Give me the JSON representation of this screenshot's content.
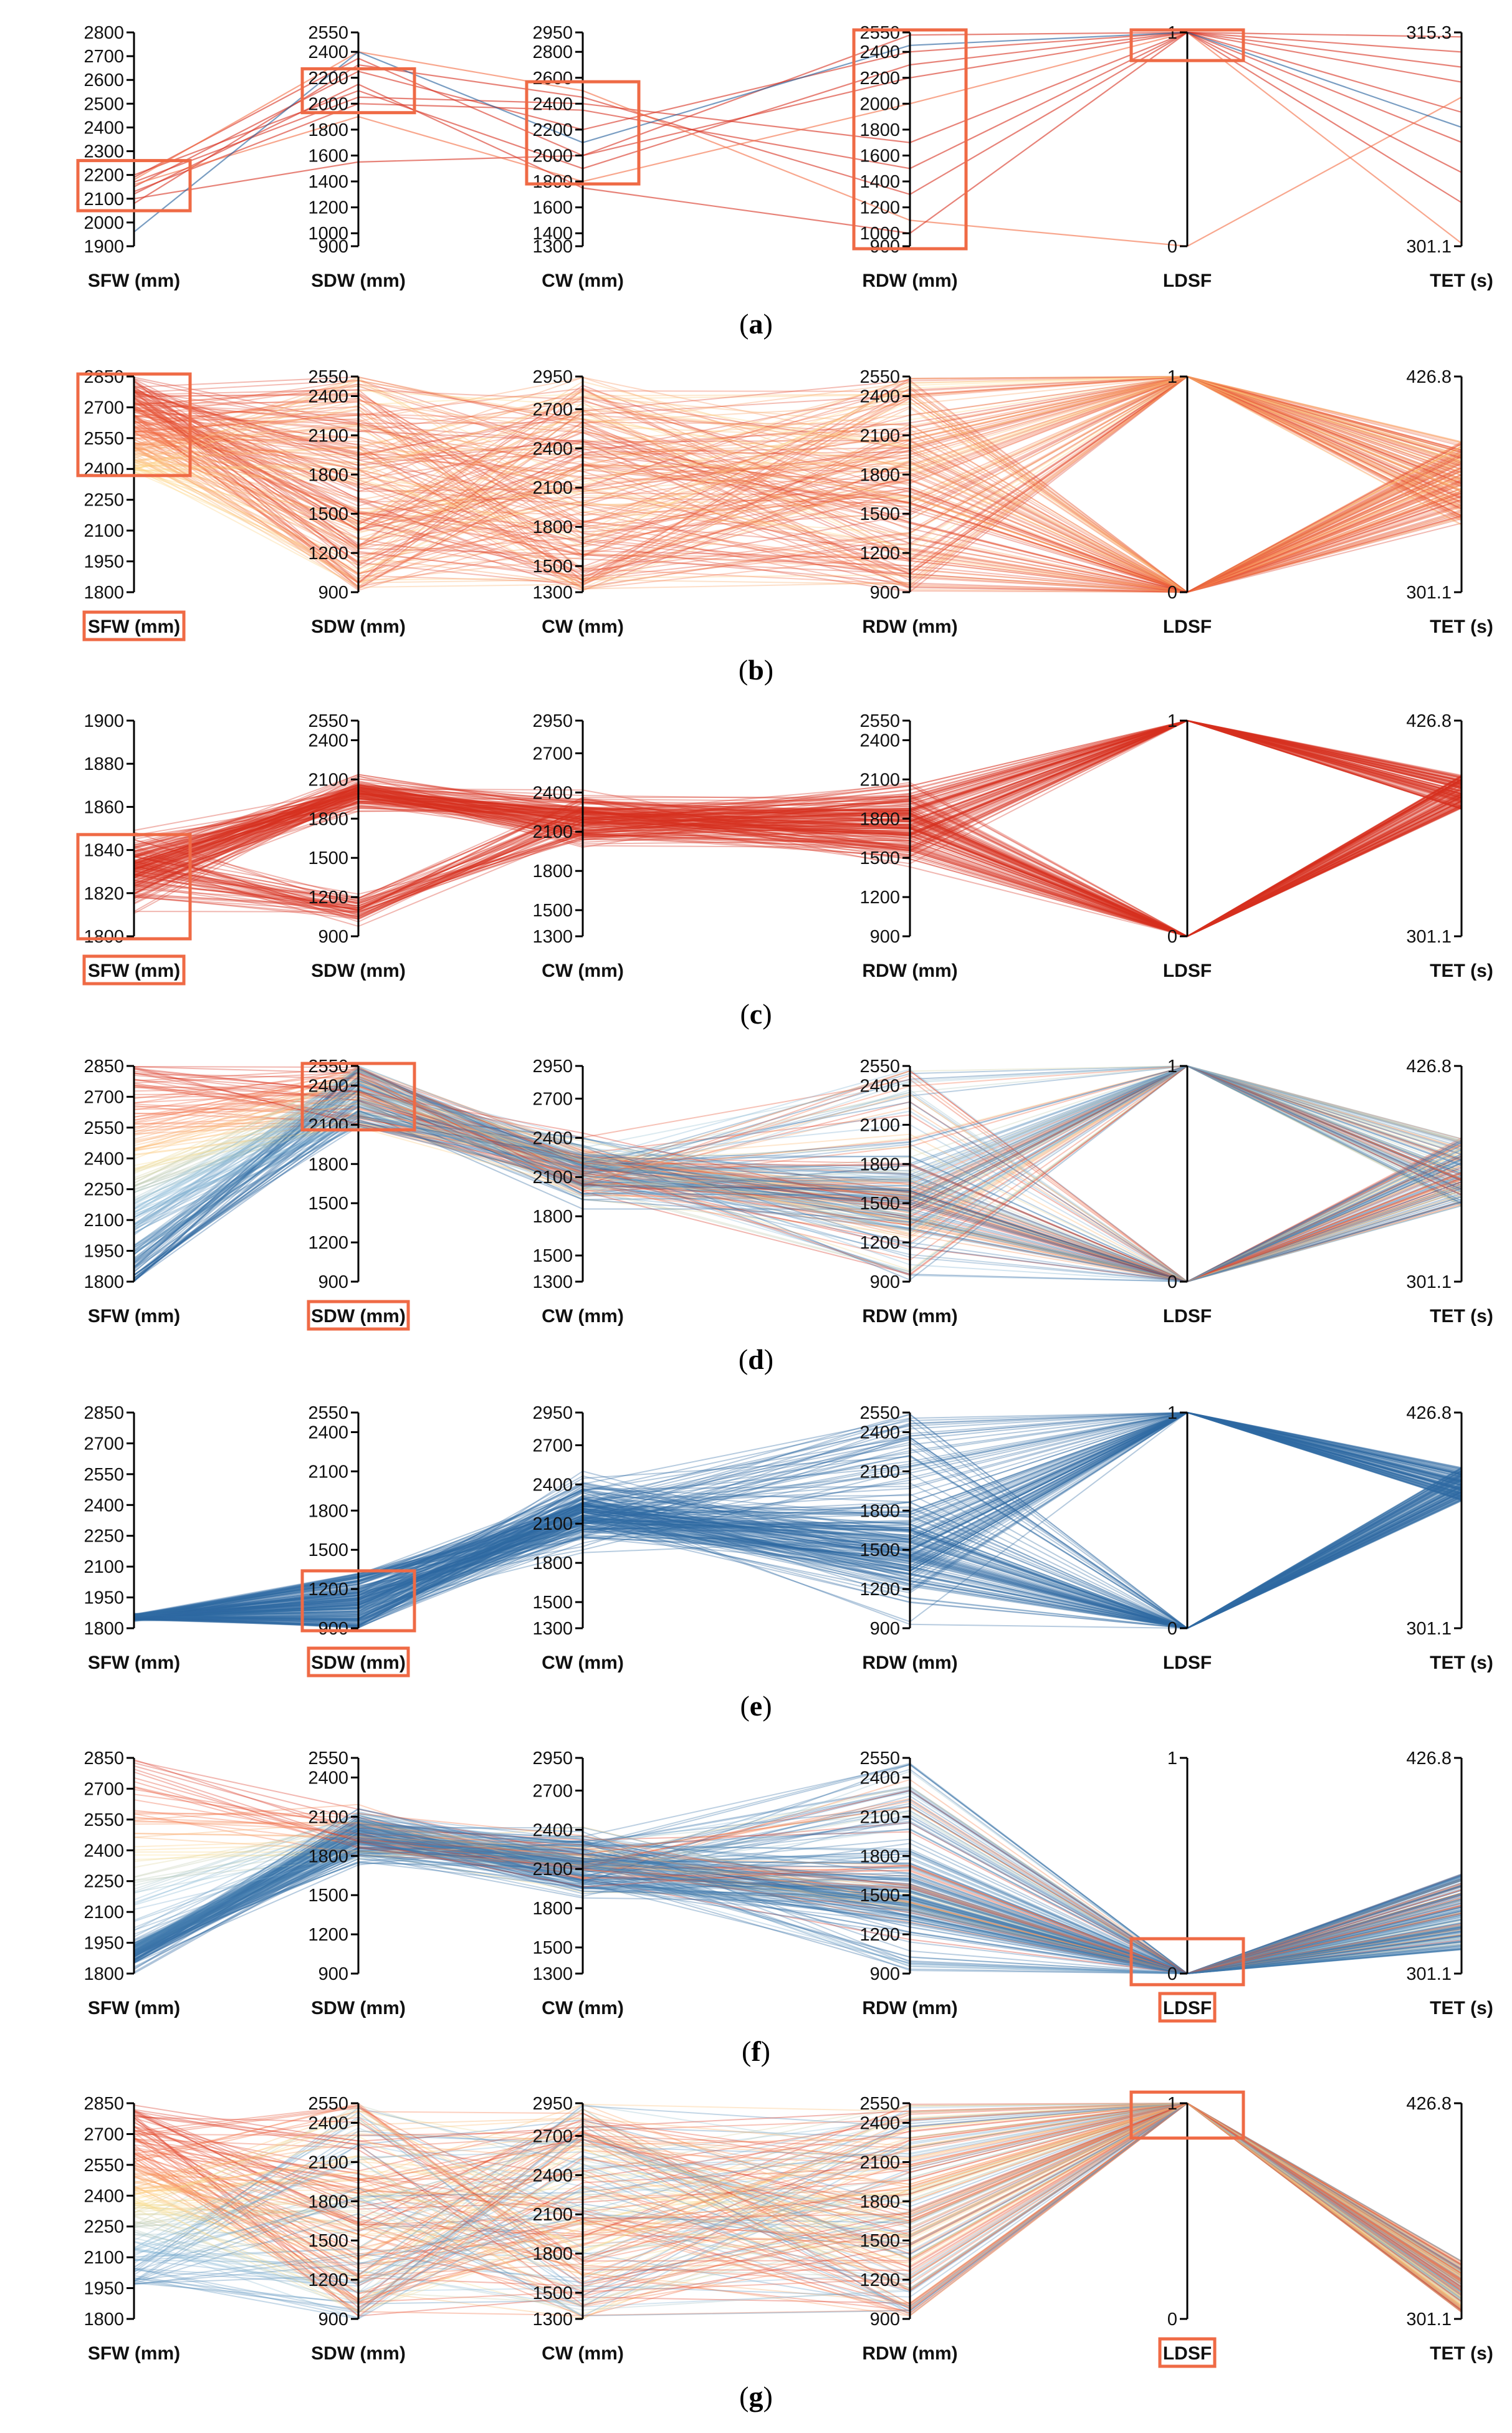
{
  "figure": {
    "colors": {
      "red": "#d7301f",
      "orange": "#f46d43",
      "yellow": "#fee08b",
      "lightblue": "#91bfdb",
      "blue": "#1f5c99",
      "highlight": "#ef6a45",
      "axis": "#000000"
    }
  },
  "chart_data": [
    {
      "type": "parallel_coordinates",
      "caption": "(a)",
      "axes": [
        {
          "name": "SFW (mm)",
          "ticks": [
            "2800",
            "2700",
            "2600",
            "2500",
            "2400",
            "2300",
            "2200",
            "2100",
            "2000",
            "1900"
          ],
          "range": [
            1900,
            2800
          ]
        },
        {
          "name": "SDW (mm)",
          "ticks": [
            "2550",
            "2400",
            "2200",
            "2000",
            "1800",
            "1600",
            "1400",
            "1200",
            "1000",
            "900"
          ],
          "range": [
            900,
            2550
          ]
        },
        {
          "name": "CW (mm)",
          "ticks": [
            "2950",
            "2800",
            "2600",
            "2400",
            "2200",
            "2000",
            "1800",
            "1600",
            "1400",
            "1300"
          ],
          "range": [
            1300,
            2950
          ]
        },
        {
          "name": "RDW (mm)",
          "ticks": [
            "2550",
            "2400",
            "2200",
            "2000",
            "1800",
            "1600",
            "1400",
            "1200",
            "1000",
            "900"
          ],
          "range": [
            900,
            2550
          ]
        },
        {
          "name": "LDSF",
          "ticks": [
            "1",
            "0"
          ],
          "range": [
            0,
            1
          ]
        },
        {
          "name": "TET (s)",
          "ticks": [
            "315.3",
            "301.1"
          ],
          "range": [
            301.1,
            315.3
          ]
        }
      ],
      "highlighted_axes": [],
      "selection_boxes": [
        {
          "axis": 0,
          "from": 2060,
          "to": 2250
        },
        {
          "axis": 1,
          "from": 1950,
          "to": 2250
        },
        {
          "axis": 2,
          "from": 1800,
          "to": 2550
        },
        {
          "axis": 3,
          "from": 900,
          "to": 2550
        },
        {
          "axis": 4,
          "from": 0.88,
          "to": 1
        }
      ],
      "lines": [
        {
          "values": [
            2190,
            2350,
            2000,
            2530,
            1,
            315
          ],
          "color": "red"
        },
        {
          "values": [
            2170,
            2050,
            2400,
            1700,
            1,
            312
          ],
          "color": "red"
        },
        {
          "values": [
            2150,
            2250,
            2200,
            2400,
            1,
            310
          ],
          "color": "red"
        },
        {
          "values": [
            2130,
            2000,
            2350,
            1500,
            1,
            308
          ],
          "color": "red"
        },
        {
          "values": [
            2200,
            2100,
            1900,
            2300,
            1,
            314
          ],
          "color": "red"
        },
        {
          "values": [
            2100,
            1550,
            2000,
            2200,
            1,
            313
          ],
          "color": "red"
        },
        {
          "values": [
            2080,
            2300,
            2450,
            1300,
            1,
            304
          ],
          "color": "red"
        },
        {
          "values": [
            2160,
            1900,
            1800,
            2000,
            1,
            301.3
          ],
          "color": "orange"
        },
        {
          "values": [
            2180,
            2400,
            2500,
            1100,
            0,
            311
          ],
          "color": "orange"
        },
        {
          "values": [
            2120,
            2150,
            1750,
            1000,
            1,
            306
          ],
          "color": "red"
        },
        {
          "values": [
            1960,
            2400,
            2100,
            2450,
            1,
            309
          ],
          "color": "blue"
        }
      ]
    },
    {
      "type": "parallel_coordinates",
      "caption": "(b)",
      "axes": [
        {
          "name": "SFW (mm)",
          "ticks": [
            "2850",
            "2700",
            "2550",
            "2400",
            "2250",
            "2100",
            "1950",
            "1800"
          ],
          "range": [
            1800,
            2850
          ]
        },
        {
          "name": "SDW (mm)",
          "ticks": [
            "2550",
            "2400",
            "2100",
            "1800",
            "1500",
            "1200",
            "900"
          ],
          "range": [
            900,
            2550
          ]
        },
        {
          "name": "CW (mm)",
          "ticks": [
            "2950",
            "2700",
            "2400",
            "2100",
            "1800",
            "1500",
            "1300"
          ],
          "range": [
            1300,
            2950
          ]
        },
        {
          "name": "RDW (mm)",
          "ticks": [
            "2550",
            "2400",
            "2100",
            "1800",
            "1500",
            "1200",
            "900"
          ],
          "range": [
            900,
            2550
          ]
        },
        {
          "name": "LDSF",
          "ticks": [
            "1",
            "0"
          ],
          "range": [
            0,
            1
          ]
        },
        {
          "name": "TET (s)",
          "ticks": [
            "426.8",
            "301.1"
          ],
          "range": [
            301.1,
            426.8
          ]
        }
      ],
      "highlighted_axes": [
        0
      ],
      "selection_boxes": [
        {
          "axis": 0,
          "from": 2380,
          "to": 2850
        }
      ],
      "brush": {
        "axis": 0,
        "range": [
          2380,
          2850
        ]
      },
      "bundle": {
        "color_by_sfw": true,
        "tet_range": [
          340,
          390
        ],
        "ldsf": "both",
        "count": 190
      }
    },
    {
      "type": "parallel_coordinates",
      "caption": "(c)",
      "axes": [
        {
          "name": "SFW (mm)",
          "ticks": [
            "1900",
            "1880",
            "1860",
            "1840",
            "1820",
            "1800"
          ],
          "range": [
            1800,
            1900
          ]
        },
        {
          "name": "SDW (mm)",
          "ticks": [
            "2550",
            "2400",
            "2100",
            "1800",
            "1500",
            "1200",
            "900"
          ],
          "range": [
            900,
            2550
          ]
        },
        {
          "name": "CW (mm)",
          "ticks": [
            "2950",
            "2700",
            "2400",
            "2100",
            "1800",
            "1500",
            "1300"
          ],
          "range": [
            1300,
            2950
          ]
        },
        {
          "name": "RDW (mm)",
          "ticks": [
            "2550",
            "2400",
            "2100",
            "1800",
            "1500",
            "1200",
            "900"
          ],
          "range": [
            900,
            2550
          ]
        },
        {
          "name": "LDSF",
          "ticks": [
            "1",
            "0"
          ],
          "range": [
            0,
            1
          ]
        },
        {
          "name": "TET (s)",
          "ticks": [
            "426.8",
            "301.1"
          ],
          "range": [
            301.1,
            426.8
          ]
        }
      ],
      "highlighted_axes": [
        0
      ],
      "selection_boxes": [
        {
          "axis": 0,
          "from": 1800,
          "to": 1846
        }
      ],
      "brush": {
        "axis": 0,
        "range": [
          1800,
          1846
        ]
      },
      "bundle": {
        "color": "red",
        "sfw_focus": 1830,
        "sdw_split": [
          1100,
          2000
        ],
        "tet_range": [
          375,
          395
        ],
        "ldsf": "both",
        "count": 170
      }
    },
    {
      "type": "parallel_coordinates",
      "caption": "(d)",
      "axes": [
        {
          "name": "SFW (mm)",
          "ticks": [
            "2850",
            "2700",
            "2550",
            "2400",
            "2250",
            "2100",
            "1950",
            "1800"
          ],
          "range": [
            1800,
            2850
          ]
        },
        {
          "name": "SDW (mm)",
          "ticks": [
            "2550",
            "2400",
            "2100",
            "1800",
            "1500",
            "1200",
            "900"
          ],
          "range": [
            900,
            2550
          ]
        },
        {
          "name": "CW (mm)",
          "ticks": [
            "2950",
            "2700",
            "2400",
            "2100",
            "1800",
            "1500",
            "1300"
          ],
          "range": [
            1300,
            2950
          ]
        },
        {
          "name": "RDW (mm)",
          "ticks": [
            "2550",
            "2400",
            "2100",
            "1800",
            "1500",
            "1200",
            "900"
          ],
          "range": [
            900,
            2550
          ]
        },
        {
          "name": "LDSF",
          "ticks": [
            "1",
            "0"
          ],
          "range": [
            0,
            1
          ]
        },
        {
          "name": "TET (s)",
          "ticks": [
            "426.8",
            "301.1"
          ],
          "range": [
            301.1,
            426.8
          ]
        }
      ],
      "highlighted_axes": [
        1
      ],
      "selection_boxes": [
        {
          "axis": 1,
          "from": 2080,
          "to": 2550
        }
      ],
      "brush": {
        "axis": 1,
        "range": [
          2080,
          2550
        ]
      },
      "bundle": {
        "color_by_sfw": true,
        "sdw_focus": 2300,
        "cw_focus": 2150,
        "tet_range": [
          345,
          385
        ],
        "ldsf": "both",
        "count": 190
      }
    },
    {
      "type": "parallel_coordinates",
      "caption": "(e)",
      "axes": [
        {
          "name": "SFW (mm)",
          "ticks": [
            "2850",
            "2700",
            "2550",
            "2400",
            "2250",
            "2100",
            "1950",
            "1800"
          ],
          "range": [
            1800,
            2850
          ]
        },
        {
          "name": "SDW (mm)",
          "ticks": [
            "2550",
            "2400",
            "2100",
            "1800",
            "1500",
            "1200",
            "900"
          ],
          "range": [
            900,
            2550
          ]
        },
        {
          "name": "CW (mm)",
          "ticks": [
            "2950",
            "2700",
            "2400",
            "2100",
            "1800",
            "1500",
            "1300"
          ],
          "range": [
            1300,
            2950
          ]
        },
        {
          "name": "RDW (mm)",
          "ticks": [
            "2550",
            "2400",
            "2100",
            "1800",
            "1500",
            "1200",
            "900"
          ],
          "range": [
            900,
            2550
          ]
        },
        {
          "name": "LDSF",
          "ticks": [
            "1",
            "0"
          ],
          "range": [
            0,
            1
          ]
        },
        {
          "name": "TET (s)",
          "ticks": [
            "426.8",
            "301.1"
          ],
          "range": [
            301.1,
            426.8
          ]
        }
      ],
      "highlighted_axes": [
        1
      ],
      "selection_boxes": [
        {
          "axis": 1,
          "from": 900,
          "to": 1320
        }
      ],
      "brush": {
        "axis": 1,
        "range": [
          900,
          1320
        ]
      },
      "bundle": {
        "color_by_sfw": true,
        "sfw_focus": 1850,
        "sdw_focus": 1000,
        "cw_focus": 2200,
        "tet_range": [
          375,
          395
        ],
        "ldsf": "both",
        "count": 190
      }
    },
    {
      "type": "parallel_coordinates",
      "caption": "(f)",
      "axes": [
        {
          "name": "SFW (mm)",
          "ticks": [
            "2850",
            "2700",
            "2550",
            "2400",
            "2250",
            "2100",
            "1950",
            "1800"
          ],
          "range": [
            1800,
            2850
          ]
        },
        {
          "name": "SDW (mm)",
          "ticks": [
            "2550",
            "2400",
            "2100",
            "1800",
            "1500",
            "1200",
            "900"
          ],
          "range": [
            900,
            2550
          ]
        },
        {
          "name": "CW (mm)",
          "ticks": [
            "2950",
            "2700",
            "2400",
            "2100",
            "1800",
            "1500",
            "1300"
          ],
          "range": [
            1300,
            2950
          ]
        },
        {
          "name": "RDW (mm)",
          "ticks": [
            "2550",
            "2400",
            "2100",
            "1800",
            "1500",
            "1200",
            "900"
          ],
          "range": [
            900,
            2550
          ]
        },
        {
          "name": "LDSF",
          "ticks": [
            "1",
            "0"
          ],
          "range": [
            0,
            1
          ]
        },
        {
          "name": "TET (s)",
          "ticks": [
            "426.8",
            "301.1"
          ],
          "range": [
            301.1,
            426.8
          ]
        }
      ],
      "highlighted_axes": [
        4
      ],
      "selection_boxes": [
        {
          "axis": 4,
          "from": -0.04,
          "to": 0.15
        }
      ],
      "brush": {
        "axis": 4,
        "range": [
          0,
          0.15
        ]
      },
      "bundle": {
        "color_by_sfw": true,
        "sdw_focus": 1950,
        "cw_focus": 2150,
        "tet_range": [
          315,
          360
        ],
        "ldsf": "zero",
        "count": 190
      }
    },
    {
      "type": "parallel_coordinates",
      "caption": "(g)",
      "axes": [
        {
          "name": "SFW (mm)",
          "ticks": [
            "2850",
            "2700",
            "2550",
            "2400",
            "2250",
            "2100",
            "1950",
            "1800"
          ],
          "range": [
            1800,
            2850
          ]
        },
        {
          "name": "SDW (mm)",
          "ticks": [
            "2550",
            "2400",
            "2100",
            "1800",
            "1500",
            "1200",
            "900"
          ],
          "range": [
            900,
            2550
          ]
        },
        {
          "name": "CW (mm)",
          "ticks": [
            "2950",
            "2700",
            "2400",
            "2100",
            "1800",
            "1500",
            "1300"
          ],
          "range": [
            1300,
            2950
          ]
        },
        {
          "name": "RDW (mm)",
          "ticks": [
            "2550",
            "2400",
            "2100",
            "1800",
            "1500",
            "1200",
            "900"
          ],
          "range": [
            900,
            2550
          ]
        },
        {
          "name": "LDSF",
          "ticks": [
            "1",
            "0"
          ],
          "range": [
            0,
            1
          ]
        },
        {
          "name": "TET (s)",
          "ticks": [
            "426.8",
            "301.1"
          ],
          "range": [
            301.1,
            426.8
          ]
        }
      ],
      "highlighted_axes": [
        4
      ],
      "selection_boxes": [
        {
          "axis": 4,
          "from": 0.85,
          "to": 1.04
        }
      ],
      "brush": {
        "axis": 4,
        "range": [
          0.85,
          1
        ]
      },
      "bundle": {
        "color_by_sfw": true,
        "tet_range": [
          305,
          335
        ],
        "ldsf": "one",
        "count": 190
      }
    }
  ]
}
